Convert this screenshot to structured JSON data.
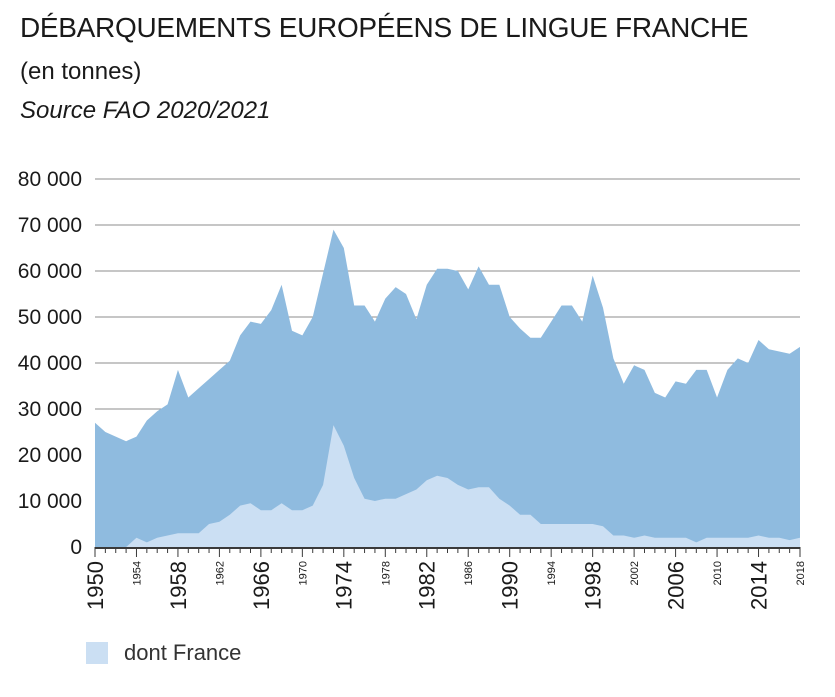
{
  "header": {
    "title": "DÉBARQUEMENTS EUROPÉENS DE LINGUE FRANCHE",
    "subtitle": "(en tonnes)",
    "source": "Source FAO 2020/2021"
  },
  "colors": {
    "europe": "#8fbbdf",
    "france": "#cbdff3",
    "grid": "#8c8c8c",
    "axis": "#3a3a3a"
  },
  "legend": {
    "france_label": "dont France"
  },
  "chart_data": {
    "type": "area",
    "ylim": [
      0,
      80000
    ],
    "y_ticks": [
      0,
      10000,
      20000,
      30000,
      40000,
      50000,
      60000,
      70000,
      80000
    ],
    "y_tick_labels": [
      "0",
      "10 000",
      "20 000",
      "30 000",
      "40 000",
      "50 000",
      "60 000",
      "70 000",
      "80 000"
    ],
    "x_range": [
      1950,
      2018
    ],
    "x_ticks_major": [
      1950,
      1958,
      1966,
      1974,
      1982,
      1990,
      1998,
      2006,
      2014
    ],
    "x_ticks_minor": [
      1954,
      1962,
      1970,
      1978,
      1986,
      1994,
      2002,
      2010,
      2018
    ],
    "x": [
      1950,
      1951,
      1952,
      1953,
      1954,
      1955,
      1956,
      1957,
      1958,
      1959,
      1960,
      1961,
      1962,
      1963,
      1964,
      1965,
      1966,
      1967,
      1968,
      1969,
      1970,
      1971,
      1972,
      1973,
      1974,
      1975,
      1976,
      1977,
      1978,
      1979,
      1980,
      1981,
      1982,
      1983,
      1984,
      1985,
      1986,
      1987,
      1988,
      1989,
      1990,
      1991,
      1992,
      1993,
      1994,
      1995,
      1996,
      1997,
      1998,
      1999,
      2000,
      2001,
      2002,
      2003,
      2004,
      2005,
      2006,
      2007,
      2008,
      2009,
      2010,
      2011,
      2012,
      2013,
      2014,
      2015,
      2016,
      2017,
      2018
    ],
    "series": [
      {
        "values": [
          27000,
          25000,
          24000,
          23000,
          24000,
          27500,
          29500,
          31000,
          38500,
          32500,
          34500,
          36500,
          38500,
          40500,
          46000,
          49000,
          48500,
          51500,
          57000,
          47000,
          46000,
          50000,
          59500,
          69000,
          65000,
          52500,
          52500,
          49000,
          54000,
          56500,
          55000,
          49500,
          57000,
          60500,
          60500,
          60000,
          56000,
          61000,
          57000,
          57000,
          50000,
          47500,
          45500,
          45500,
          49000,
          52500,
          52500,
          49000,
          59000,
          52000,
          41000,
          35500,
          39500,
          38500,
          33500,
          32500,
          36000,
          35500,
          38500,
          38500,
          32500,
          38500,
          41000,
          40000,
          45000,
          43000,
          42500,
          42000,
          43500
        ]
      },
      {
        "values": [
          0,
          0,
          0,
          0,
          2000,
          1000,
          2000,
          2500,
          3000,
          3000,
          3000,
          5000,
          5500,
          7000,
          9000,
          9500,
          8000,
          8000,
          9500,
          8000,
          8000,
          9000,
          13500,
          26500,
          22000,
          15000,
          10500,
          10000,
          10500,
          10500,
          11500,
          12500,
          14500,
          15500,
          15000,
          13500,
          12500,
          13000,
          13000,
          10500,
          9000,
          7000,
          7000,
          5000,
          5000,
          5000,
          5000,
          5000,
          5000,
          4500,
          2500,
          2500,
          2000,
          2500,
          2000,
          2000,
          2000,
          2000,
          1000,
          2000,
          2000,
          2000,
          2000,
          2000,
          2500,
          2000,
          2000,
          1500,
          2000
        ]
      }
    ]
  }
}
